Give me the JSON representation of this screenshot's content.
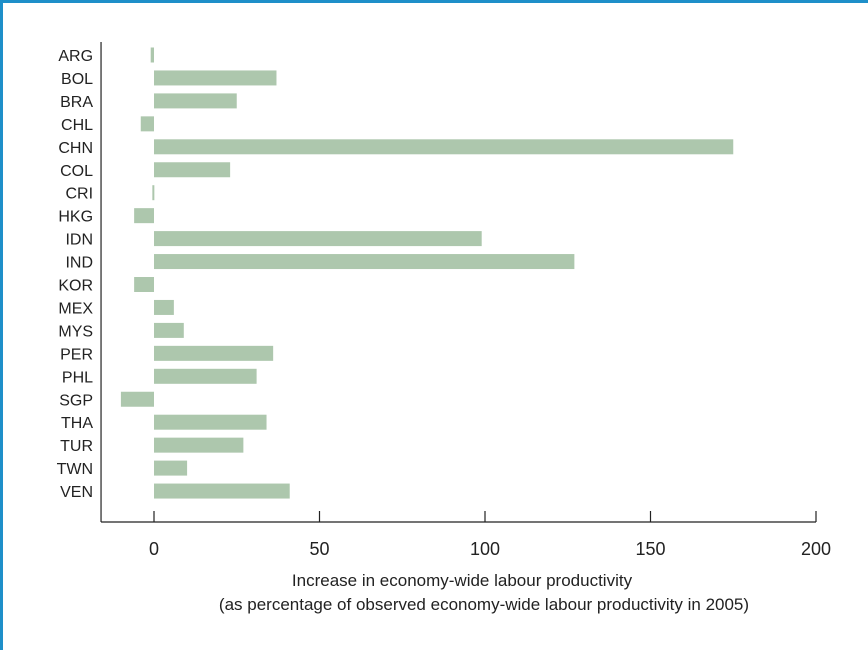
{
  "chart_data": {
    "type": "bar",
    "orientation": "horizontal",
    "categories": [
      "ARG",
      "BOL",
      "BRA",
      "CHL",
      "CHN",
      "COL",
      "CRI",
      "HKG",
      "IDN",
      "IND",
      "KOR",
      "MEX",
      "MYS",
      "PER",
      "PHL",
      "SGP",
      "THA",
      "TUR",
      "TWN",
      "VEN"
    ],
    "values": [
      -1,
      37,
      25,
      -4,
      175,
      23,
      -0.5,
      -6,
      99,
      127,
      -6,
      6,
      9,
      36,
      31,
      -10,
      34,
      27,
      10,
      41
    ],
    "xlabel": "Increase in economy-wide labour productivity",
    "xlabel_line2": "(as percentage of observed economy-wide labour productivity in 2005)",
    "ylabel": "",
    "xlim": [
      -16,
      200
    ],
    "xticks": [
      0,
      50,
      100,
      150,
      200
    ],
    "bar_color": "#adc7ad",
    "frame_color": "#1e8fc9",
    "grid": false
  }
}
